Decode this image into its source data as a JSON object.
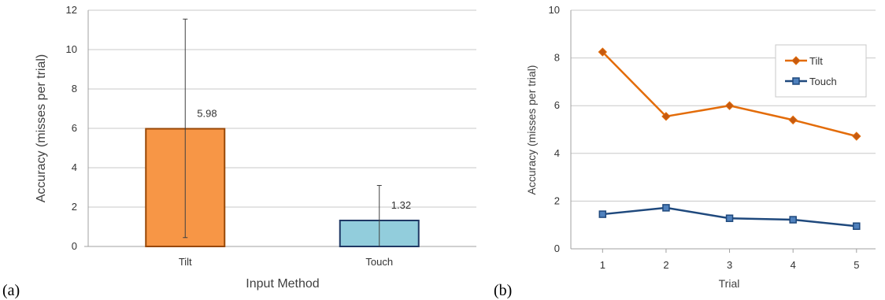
{
  "chart_data": [
    {
      "type": "bar",
      "panel_label": "(a)",
      "title": "",
      "xlabel": "Input Method",
      "ylabel": "Accuracy (misses per trial)",
      "ylim": [
        0,
        12
      ],
      "yticks": [
        "0",
        "2",
        "4",
        "6",
        "8",
        "10",
        "12"
      ],
      "categories": [
        "Tilt",
        "Touch"
      ],
      "values": [
        5.98,
        1.32
      ],
      "value_labels": [
        "5.98",
        "1.32"
      ],
      "error_low": [
        0.45,
        0.0
      ],
      "error_high": [
        11.55,
        3.1
      ],
      "bar_colors": [
        "#f79646",
        "#92cddc"
      ],
      "bar_edge_colors": [
        "#984807",
        "#1f3864"
      ],
      "grid": true
    },
    {
      "type": "line",
      "panel_label": "(b)",
      "title": "",
      "xlabel": "Trial",
      "ylabel": "Accuracy (misses per trial)",
      "ylim": [
        0,
        10
      ],
      "yticks": [
        "0",
        "2",
        "4",
        "6",
        "8",
        "10"
      ],
      "x": [
        1,
        2,
        3,
        4,
        5
      ],
      "xticks": [
        "1",
        "2",
        "3",
        "4",
        "5"
      ],
      "series": [
        {
          "name": "Tilt",
          "values": [
            8.25,
            5.55,
            6.0,
            5.4,
            4.72
          ],
          "color": "#e36c09",
          "marker_fill": "#c55a11",
          "marker": "diamond"
        },
        {
          "name": "Touch",
          "values": [
            1.45,
            1.72,
            1.28,
            1.22,
            0.95
          ],
          "color": "#1f497d",
          "marker_fill": "#4f81bd",
          "marker": "square"
        }
      ],
      "legend": "top-right",
      "grid": true
    }
  ]
}
